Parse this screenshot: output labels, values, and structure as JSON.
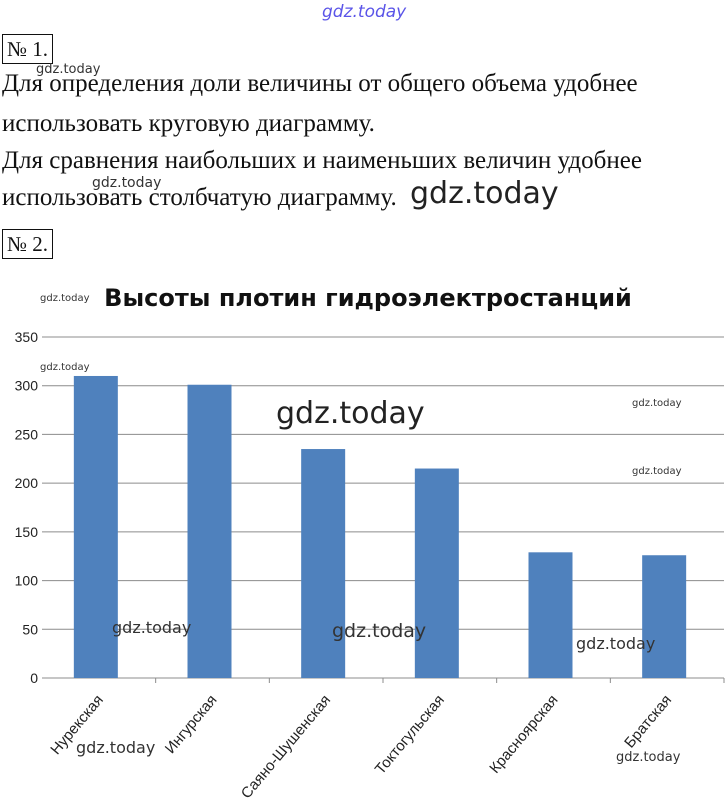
{
  "watermark_top": "gdz.today",
  "task1": {
    "label": "№ 1.",
    "lines": [
      "Для определения доли величины от общего объема удобнее",
      "использовать круговую диаграмму.",
      "Для сравнения наибольших и наименьших величин удобнее",
      "использовать столбчатую диаграмму."
    ]
  },
  "task2": {
    "label": "№ 2."
  },
  "watermark": "gdz.today",
  "chart_data": {
    "type": "bar",
    "title": "Высоты плотин гидроэлектростанций",
    "categories": [
      "Нурекская",
      "Ингурская",
      "Саяно-Шушенская",
      "Токтогульская",
      "Красноярская",
      "Братская"
    ],
    "values": [
      310,
      301,
      235,
      215,
      129,
      126
    ],
    "yticks": [
      0,
      50,
      100,
      150,
      200,
      250,
      300,
      350
    ],
    "ylim": [
      0,
      350
    ],
    "grid": true,
    "bar_color": "#4f81bd"
  }
}
